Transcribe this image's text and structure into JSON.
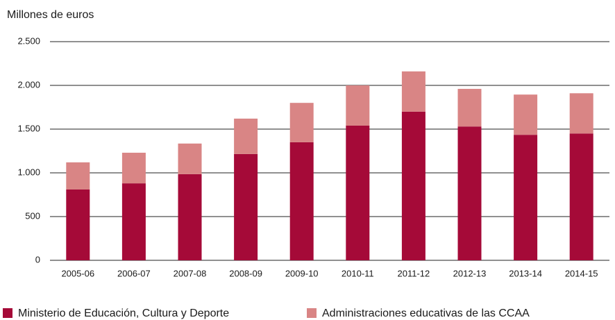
{
  "chart_data": {
    "type": "stacked-bar",
    "y_axis_label": "Millones de euros",
    "categories": [
      "2005-06",
      "2006-07",
      "2007-08",
      "2008-09",
      "2009-10",
      "2010-11",
      "2011-12",
      "2012-13",
      "2013-14",
      "2014-15"
    ],
    "series": [
      {
        "name": "Ministerio de Educación, Cultura y Deporte",
        "color": "#a50a38",
        "values": [
          810,
          880,
          985,
          1215,
          1350,
          1540,
          1700,
          1530,
          1435,
          1450
        ]
      },
      {
        "name": "Administraciones educativas de las CCAA",
        "color": "#d98585",
        "values": [
          310,
          350,
          350,
          405,
          450,
          460,
          460,
          430,
          460,
          460
        ]
      }
    ],
    "ylim": [
      0,
      2500
    ],
    "yticks": [
      0,
      500,
      {
        "value": 1000,
        "label": "1.000"
      },
      {
        "value": 1500,
        "label": "1.500"
      },
      {
        "value": 2000,
        "label": "2.000"
      },
      {
        "value": 2500,
        "label": "2.500"
      }
    ],
    "grid": true,
    "legend": "bottom"
  }
}
